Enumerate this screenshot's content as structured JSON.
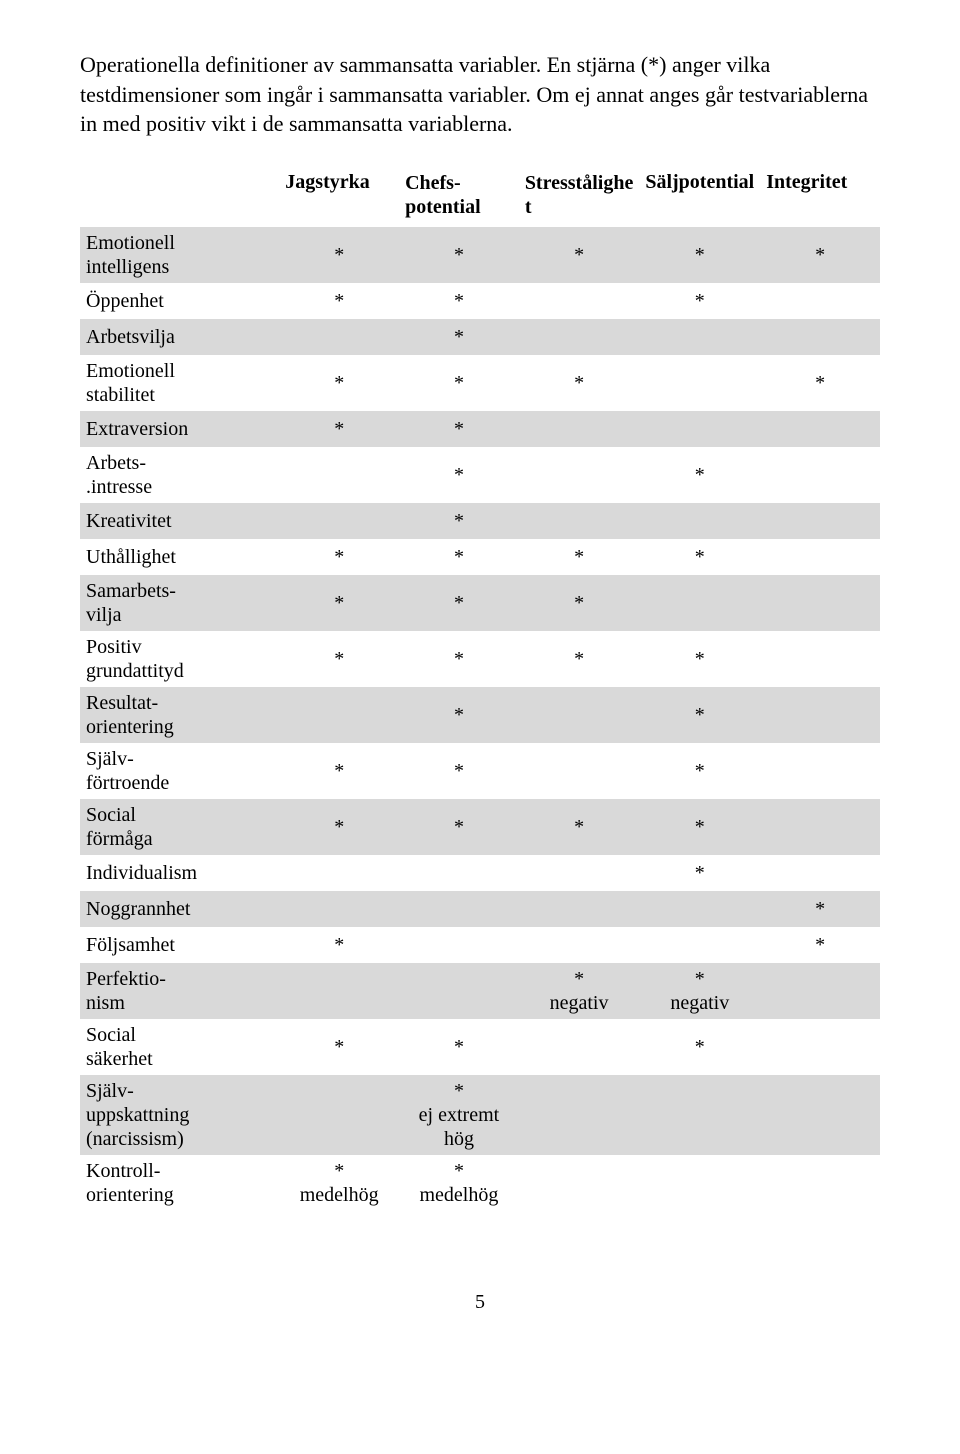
{
  "intro": "Operationella definitioner av sammansatta variabler. En stjärna (*) anger vilka testdimensioner som ingår i sammansatta variabler. Om ej annat anges går testvariablerna in med positiv vikt i de sammansatta variablerna.",
  "table": {
    "columns": [
      "",
      "Jagstyrka",
      "Chefs-\npotential",
      "Stresstålighe\nt",
      "Säljpotential",
      "Integritet"
    ],
    "rows": [
      {
        "label": "Emotionell\nintelligens",
        "cells": [
          "*",
          "*",
          "*",
          "*",
          "*"
        ],
        "tall": true
      },
      {
        "label": "Öppenhet",
        "cells": [
          "*",
          "*",
          "",
          "*",
          ""
        ]
      },
      {
        "label": "Arbetsvilja",
        "cells": [
          "",
          "*",
          "",
          "",
          ""
        ]
      },
      {
        "label": "Emotionell\nstabilitet",
        "cells": [
          "*",
          "*",
          "*",
          "",
          "*"
        ],
        "tall": true
      },
      {
        "label": "Extraversion",
        "cells": [
          "*",
          "*",
          "",
          "",
          ""
        ]
      },
      {
        "label": "Arbets-\n.intresse",
        "cells": [
          "",
          "*",
          "",
          "*",
          ""
        ],
        "tall": true
      },
      {
        "label": "Kreativitet",
        "cells": [
          "",
          "*",
          "",
          "",
          ""
        ]
      },
      {
        "label": "Uthållighet",
        "cells": [
          "*",
          "*",
          "*",
          "*",
          ""
        ]
      },
      {
        "label": "Samarbets-\nvilja",
        "cells": [
          "*",
          "*",
          "*",
          "",
          ""
        ],
        "tall": true
      },
      {
        "label": "Positiv\ngrundattityd",
        "cells": [
          "*",
          "*",
          "*",
          "*",
          ""
        ],
        "tall": true
      },
      {
        "label": "Resultat-\norientering",
        "cells": [
          "",
          "*",
          "",
          "*",
          ""
        ],
        "tall": true
      },
      {
        "label": "Själv-\nförtroende",
        "cells": [
          "*",
          "*",
          "",
          "*",
          ""
        ],
        "tall": true
      },
      {
        "label": "Social\nförmåga",
        "cells": [
          "*",
          "*",
          "*",
          "*",
          ""
        ],
        "tall": true
      },
      {
        "label": "Individualism",
        "cells": [
          "",
          "",
          "",
          "*",
          ""
        ]
      },
      {
        "label": "Noggrannhet",
        "cells": [
          "",
          "",
          "",
          "",
          "*"
        ]
      },
      {
        "label": "Följsamhet",
        "cells": [
          "*",
          "",
          "",
          "",
          "*"
        ]
      },
      {
        "label": "Perfektio-\nnism",
        "cells": [
          "",
          "",
          "*\nnegativ",
          "*\nnegativ",
          ""
        ],
        "tall": true
      },
      {
        "label": "Social\nsäkerhet",
        "cells": [
          "*",
          "*",
          "",
          "*",
          ""
        ],
        "tall": true
      },
      {
        "label": "Själv-\nuppskattning\n(narcissism)",
        "cells": [
          "",
          "*\nej extremt\nhög",
          "",
          "",
          ""
        ],
        "tall": true
      },
      {
        "label": "Kontroll-\norientering",
        "cells": [
          "*\nmedelhög",
          "*\nmedelhög",
          "",
          "",
          ""
        ],
        "tall": true
      }
    ],
    "odd_bg": "#d9d9d9",
    "even_bg": "#ffffff"
  },
  "page_number": "5"
}
